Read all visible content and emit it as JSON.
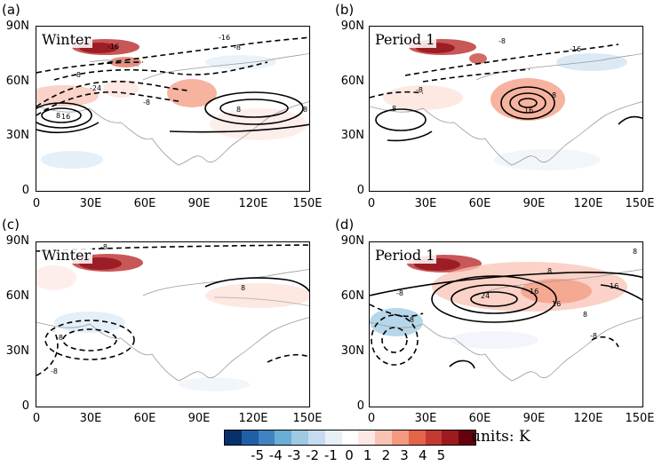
{
  "panels": [
    {
      "letter": "(a)",
      "season": "Winter"
    },
    {
      "letter": "(b)",
      "season": "Period 1"
    },
    {
      "letter": "(c)",
      "season": "Winter"
    },
    {
      "letter": "(d)",
      "season": "Period 1"
    }
  ],
  "axes": {
    "lat_ticks": [
      "90N",
      "60N",
      "30N",
      "0"
    ],
    "lon_ticks": [
      "0",
      "30E",
      "60E",
      "90E",
      "120E",
      "150E"
    ]
  },
  "contour_labels": {
    "a": [
      "-16",
      "-16",
      "-8",
      "-8",
      "-24",
      "-8",
      "8",
      "16",
      "8",
      "8"
    ],
    "b": [
      "-8",
      "-16",
      "8",
      "8",
      "16",
      "-8"
    ],
    "c": [
      "-8",
      "8",
      "-8",
      "-8"
    ],
    "d": [
      "8",
      "8",
      "24",
      "16",
      "16",
      "16",
      "8",
      "-8",
      "-8",
      "-8"
    ]
  },
  "colorbar": {
    "labels": [
      "-5",
      "-4",
      "-3",
      "-2",
      "-1",
      "0",
      "1",
      "2",
      "3",
      "4",
      "5"
    ],
    "colors": [
      "#08306b",
      "#1f5fa6",
      "#3f84c1",
      "#6aaed6",
      "#9ecae1",
      "#c6dbef",
      "#e7f0f7",
      "#ffffff",
      "#fde8e4",
      "#f9c3b4",
      "#f39a80",
      "#e4644a",
      "#c43a32",
      "#9b1b1e",
      "#67000d"
    ],
    "units": "units: K"
  }
}
